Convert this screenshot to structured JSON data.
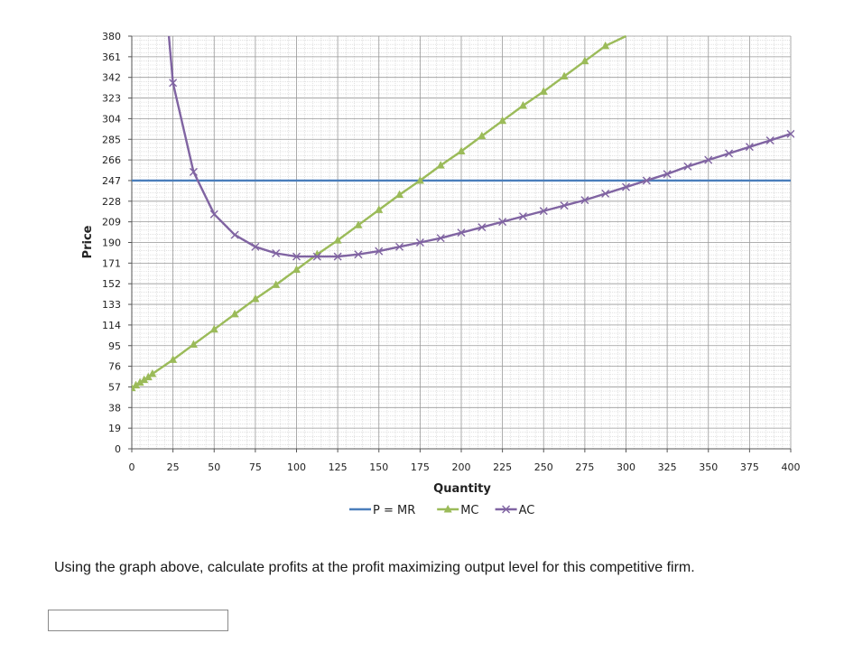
{
  "chart_data": {
    "type": "line",
    "title": "",
    "xlabel": "Quantity",
    "ylabel": "Price",
    "xlim": [
      0,
      400
    ],
    "ylim": [
      0,
      380
    ],
    "x_ticks": [
      "0",
      "25",
      "50",
      "75",
      "100",
      "125",
      "150",
      "175",
      "200",
      "225",
      "250",
      "275",
      "300",
      "325",
      "350",
      "375",
      "400"
    ],
    "y_ticks": [
      "0",
      "19",
      "38",
      "57",
      "76",
      "95",
      "114",
      "133",
      "152",
      "171",
      "190",
      "209",
      "228",
      "247",
      "266",
      "285",
      "304",
      "323",
      "342",
      "361",
      "380"
    ],
    "grid": true,
    "legend_position": "bottom",
    "series": [
      {
        "name": "P = MR",
        "color": "#4a7ebb",
        "marker": "none",
        "x": [
          0,
          400
        ],
        "y": [
          247,
          247
        ]
      },
      {
        "name": "MC",
        "color": "#9bbb59",
        "marker": "triangle",
        "x": [
          0,
          2.5,
          5,
          7.5,
          10,
          12.5,
          25,
          37.5,
          50,
          62.5,
          75,
          87.5,
          100,
          112.5,
          125,
          137.5,
          150,
          162.5,
          175,
          187.5,
          200,
          212.5,
          225,
          237.5,
          250,
          262.5,
          275,
          287.5,
          300
        ],
        "y": [
          56,
          58.5,
          61,
          63.5,
          66,
          69,
          82,
          96,
          110,
          124,
          138,
          151,
          165,
          179,
          192,
          206,
          220,
          234,
          247,
          261,
          274,
          288,
          302,
          316,
          329,
          343,
          357,
          371,
          380
        ]
      },
      {
        "name": "AC",
        "color": "#8064a2",
        "marker": "x",
        "x": [
          22.5,
          25,
          37.5,
          50,
          62.5,
          75,
          87.5,
          100,
          112.5,
          125,
          137.5,
          150,
          162.5,
          175,
          187.5,
          200,
          212.5,
          225,
          237.5,
          250,
          262.5,
          275,
          287.5,
          300,
          312.5,
          325,
          337.5,
          350,
          362.5,
          375,
          387.5,
          400
        ],
        "y": [
          380,
          337,
          255,
          216,
          197,
          186,
          180,
          177,
          177,
          177,
          179,
          182,
          186,
          190,
          194,
          199,
          204,
          209,
          214,
          219,
          224,
          229,
          235,
          241,
          247,
          253,
          260,
          266,
          272,
          278,
          284,
          290
        ]
      }
    ]
  },
  "question": {
    "text": "Using the graph above, calculate profits at the profit maximizing output level for this competitive firm.",
    "answer_value": ""
  }
}
